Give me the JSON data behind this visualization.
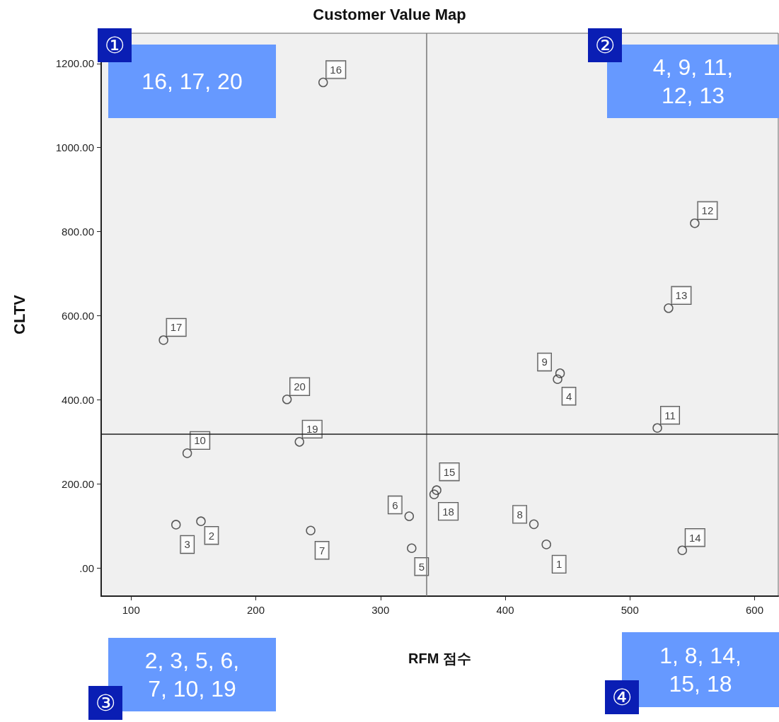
{
  "chart_data": {
    "type": "scatter",
    "title": "Customer Value Map",
    "xlabel": "RFM 점수",
    "ylabel": "CLTV",
    "series": [
      {
        "name": "1",
        "color": "#333333",
        "x": [
          433
        ],
        "values": [
          56
        ]
      },
      {
        "name": "2",
        "color": "#333333",
        "x": [
          156
        ],
        "values": [
          111
        ]
      },
      {
        "name": "3",
        "color": "#333333",
        "x": [
          136
        ],
        "values": [
          103
        ]
      },
      {
        "name": "4",
        "color": "#333333",
        "x": [
          442
        ],
        "values": [
          449
        ]
      },
      {
        "name": "5",
        "color": "#333333",
        "x": [
          325
        ],
        "values": [
          47
        ]
      },
      {
        "name": "6",
        "color": "#333333",
        "x": [
          323
        ],
        "values": [
          123
        ]
      },
      {
        "name": "7",
        "color": "#333333",
        "x": [
          244
        ],
        "values": [
          89
        ]
      },
      {
        "name": "8",
        "color": "#333333",
        "x": [
          423
        ],
        "values": [
          104
        ]
      },
      {
        "name": "9",
        "color": "#333333",
        "x": [
          444
        ],
        "values": [
          463
        ]
      },
      {
        "name": "10",
        "color": "#333333",
        "x": [
          145
        ],
        "values": [
          273
        ]
      },
      {
        "name": "11",
        "color": "#333333",
        "x": [
          522
        ],
        "values": [
          333
        ]
      },
      {
        "name": "12",
        "color": "#333333",
        "x": [
          552
        ],
        "values": [
          820
        ]
      },
      {
        "name": "13",
        "color": "#333333",
        "x": [
          531
        ],
        "values": [
          618
        ]
      },
      {
        "name": "14",
        "color": "#333333",
        "x": [
          542
        ],
        "values": [
          42
        ]
      },
      {
        "name": "15",
        "color": "#333333",
        "x": [
          345
        ],
        "values": [
          185
        ]
      },
      {
        "name": "16",
        "color": "#333333",
        "x": [
          254
        ],
        "values": [
          1155
        ]
      },
      {
        "name": "17",
        "color": "#333333",
        "x": [
          126
        ],
        "values": [
          542
        ]
      },
      {
        "name": "18",
        "color": "#333333",
        "x": [
          343
        ],
        "values": [
          175
        ]
      },
      {
        "name": "19",
        "color": "#333333",
        "x": [
          235
        ],
        "values": [
          300
        ]
      },
      {
        "name": "20",
        "color": "#333333",
        "x": [
          225
        ],
        "values": [
          401
        ]
      }
    ],
    "marker": "circle",
    "xlim": [
      76,
      619
    ],
    "xticks": [
      100,
      200,
      300,
      400,
      500,
      600
    ],
    "ylim": [
      -67,
      1272
    ],
    "yticks": [
      {
        "value": 0,
        "label": ".00"
      },
      {
        "value": 200,
        "label": "200.00"
      },
      {
        "value": 400,
        "label": "400.00"
      },
      {
        "value": 600,
        "label": "600.00"
      },
      {
        "value": 800,
        "label": "800.00"
      },
      {
        "value": 1000,
        "label": "1000.00"
      },
      {
        "value": 1200,
        "label": "1200.00"
      }
    ],
    "ref_lines": [
      {
        "axis": "x",
        "value": 337,
        "label": null,
        "color": "#777777"
      },
      {
        "axis": "y",
        "value": 318,
        "label": null,
        "color": "#222222"
      }
    ],
    "annotations": [
      "①",
      "16, 17, 20",
      "②",
      "4, 9, 11, 12, 13",
      "③",
      "2, 3, 5, 6, 7, 10, 19",
      "④",
      "1, 8, 14, 15, 18"
    ]
  }
}
